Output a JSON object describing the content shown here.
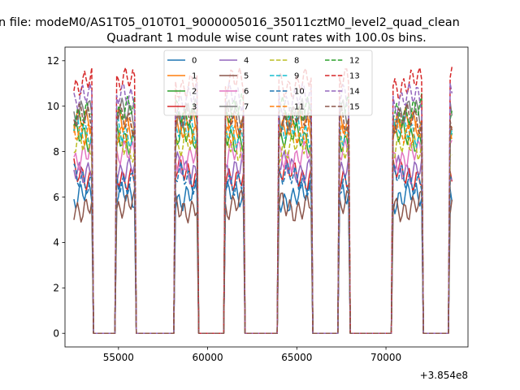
{
  "chart_data": {
    "type": "line",
    "suptitle": "n file: modeM0/AS1T05_010T01_9000005016_35011cztM0_level2_quad_clean",
    "title": "Quadrant 1 module wise count rates with 100.0s bins.",
    "xlabel": "",
    "ylabel": "",
    "x_offset_label": "+3.854e8",
    "xlim": [
      52000,
      74600
    ],
    "ylim": [
      -0.6,
      12.6
    ],
    "x_ticks": [
      55000,
      60000,
      65000,
      70000
    ],
    "x_tick_labels": [
      "55000",
      "60000",
      "65000",
      "70000"
    ],
    "y_ticks": [
      0,
      2,
      4,
      6,
      8,
      10,
      12
    ],
    "y_tick_labels": [
      "0",
      "2",
      "4",
      "6",
      "8",
      "10",
      "12"
    ],
    "grid": false,
    "legend_position": "top-center",
    "on_intervals": [
      [
        52500,
        53500
      ],
      [
        54900,
        55900
      ],
      [
        58200,
        59400
      ],
      [
        61000,
        62000
      ],
      [
        64000,
        65800
      ],
      [
        67400,
        67900
      ],
      [
        70400,
        72000
      ],
      [
        73600,
        73700
      ]
    ],
    "series": [
      {
        "name": "0",
        "color": "#1f77b4",
        "style": "solid",
        "level": 6.0
      },
      {
        "name": "1",
        "color": "#ff7f0e",
        "style": "solid",
        "level": 9.2
      },
      {
        "name": "2",
        "color": "#2ca02c",
        "style": "solid",
        "level": 8.6
      },
      {
        "name": "3",
        "color": "#d62728",
        "style": "solid",
        "level": 7.0
      },
      {
        "name": "4",
        "color": "#9467bd",
        "style": "solid",
        "level": 7.3
      },
      {
        "name": "5",
        "color": "#8c564b",
        "style": "solid",
        "level": 5.6
      },
      {
        "name": "6",
        "color": "#e377c2",
        "style": "solid",
        "level": 7.8
      },
      {
        "name": "7",
        "color": "#7f7f7f",
        "style": "solid",
        "level": 9.6
      },
      {
        "name": "8",
        "color": "#bcbd22",
        "style": "dashed",
        "level": 8.2
      },
      {
        "name": "9",
        "color": "#17becf",
        "style": "dashed",
        "level": 8.9
      },
      {
        "name": "10",
        "color": "#1f77b4",
        "style": "dashed",
        "level": 6.8
      },
      {
        "name": "11",
        "color": "#ff7f0e",
        "style": "dashed",
        "level": 9.0
      },
      {
        "name": "12",
        "color": "#2ca02c",
        "style": "dashed",
        "level": 9.8
      },
      {
        "name": "13",
        "color": "#d62728",
        "style": "dashed",
        "level": 11.0
      },
      {
        "name": "14",
        "color": "#9467bd",
        "style": "dashed",
        "level": 10.3
      },
      {
        "name": "15",
        "color": "#8c564b",
        "style": "dashed",
        "level": 9.4
      }
    ]
  }
}
